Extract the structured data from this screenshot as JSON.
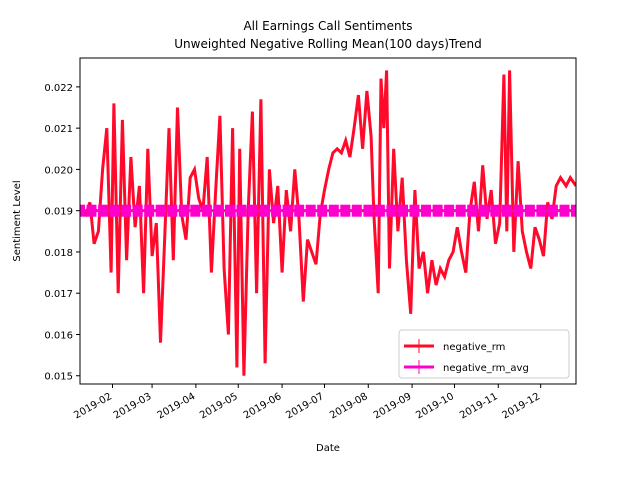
{
  "chart_data": {
    "type": "line",
    "title": "All Earnings Call Sentiments",
    "subtitle": "Unweighted Negative Rolling Mean(100 days)Trend",
    "xlabel": "Date",
    "ylabel": "Sentiment Level",
    "xlim": [
      "2019-01-09",
      "2019-12-26"
    ],
    "ylim": [
      0.0148,
      0.0227
    ],
    "x_ticks": [
      "2019-02",
      "2019-03",
      "2019-04",
      "2019-05",
      "2019-06",
      "2019-07",
      "2019-08",
      "2019-09",
      "2019-10",
      "2019-11",
      "2019-12"
    ],
    "y_ticks": [
      "0.015",
      "0.016",
      "0.017",
      "0.018",
      "0.019",
      "0.020",
      "0.021",
      "0.022"
    ],
    "grid": false,
    "legend_position": "lower right",
    "series": [
      {
        "name": "negative_rm",
        "color": "#ff0a2a",
        "style": "line",
        "points": [
          [
            "2019-01-09",
            0.019
          ],
          [
            "2019-01-13",
            0.0189
          ],
          [
            "2019-01-16",
            0.0192
          ],
          [
            "2019-01-19",
            0.0182
          ],
          [
            "2019-01-22",
            0.0185
          ],
          [
            "2019-01-25",
            0.02
          ],
          [
            "2019-01-28",
            0.021
          ],
          [
            "2019-01-31",
            0.0175
          ],
          [
            "2019-02-02",
            0.0216
          ],
          [
            "2019-02-05",
            0.017
          ],
          [
            "2019-02-08",
            0.0212
          ],
          [
            "2019-02-11",
            0.0178
          ],
          [
            "2019-02-14",
            0.0203
          ],
          [
            "2019-02-17",
            0.0186
          ],
          [
            "2019-02-20",
            0.0196
          ],
          [
            "2019-02-23",
            0.017
          ],
          [
            "2019-02-26",
            0.0205
          ],
          [
            "2019-03-01",
            0.0179
          ],
          [
            "2019-03-04",
            0.0187
          ],
          [
            "2019-03-07",
            0.0158
          ],
          [
            "2019-03-10",
            0.0184
          ],
          [
            "2019-03-13",
            0.021
          ],
          [
            "2019-03-16",
            0.0178
          ],
          [
            "2019-03-19",
            0.0215
          ],
          [
            "2019-03-22",
            0.0189
          ],
          [
            "2019-03-25",
            0.0183
          ],
          [
            "2019-03-28",
            0.0198
          ],
          [
            "2019-03-31",
            0.02
          ],
          [
            "2019-04-03",
            0.0193
          ],
          [
            "2019-04-06",
            0.019
          ],
          [
            "2019-04-09",
            0.0203
          ],
          [
            "2019-04-12",
            0.0175
          ],
          [
            "2019-04-15",
            0.0195
          ],
          [
            "2019-04-18",
            0.0213
          ],
          [
            "2019-04-21",
            0.0176
          ],
          [
            "2019-04-24",
            0.016
          ],
          [
            "2019-04-27",
            0.021
          ],
          [
            "2019-04-30",
            0.0152
          ],
          [
            "2019-05-02",
            0.0205
          ],
          [
            "2019-05-05",
            0.015
          ],
          [
            "2019-05-08",
            0.019
          ],
          [
            "2019-05-11",
            0.0214
          ],
          [
            "2019-05-14",
            0.017
          ],
          [
            "2019-05-17",
            0.0217
          ],
          [
            "2019-05-20",
            0.0153
          ],
          [
            "2019-05-23",
            0.02
          ],
          [
            "2019-05-26",
            0.0187
          ],
          [
            "2019-05-29",
            0.0196
          ],
          [
            "2019-06-01",
            0.0175
          ],
          [
            "2019-06-04",
            0.0195
          ],
          [
            "2019-06-07",
            0.0185
          ],
          [
            "2019-06-10",
            0.02
          ],
          [
            "2019-06-13",
            0.0188
          ],
          [
            "2019-06-16",
            0.0168
          ],
          [
            "2019-06-19",
            0.0183
          ],
          [
            "2019-06-22",
            0.018
          ],
          [
            "2019-06-25",
            0.0177
          ],
          [
            "2019-06-28",
            0.0189
          ],
          [
            "2019-07-01",
            0.0195
          ],
          [
            "2019-07-04",
            0.02
          ],
          [
            "2019-07-07",
            0.0204
          ],
          [
            "2019-07-10",
            0.0205
          ],
          [
            "2019-07-13",
            0.0204
          ],
          [
            "2019-07-16",
            0.0207
          ],
          [
            "2019-07-19",
            0.0203
          ],
          [
            "2019-07-22",
            0.021
          ],
          [
            "2019-07-25",
            0.0218
          ],
          [
            "2019-07-28",
            0.0205
          ],
          [
            "2019-07-31",
            0.0219
          ],
          [
            "2019-08-03",
            0.0208
          ],
          [
            "2019-08-05",
            0.0189
          ],
          [
            "2019-08-08",
            0.017
          ],
          [
            "2019-08-10",
            0.0222
          ],
          [
            "2019-08-12",
            0.021
          ],
          [
            "2019-08-14",
            0.0224
          ],
          [
            "2019-08-16",
            0.0176
          ],
          [
            "2019-08-19",
            0.0205
          ],
          [
            "2019-08-22",
            0.0185
          ],
          [
            "2019-08-25",
            0.0198
          ],
          [
            "2019-08-28",
            0.0178
          ],
          [
            "2019-08-31",
            0.0165
          ],
          [
            "2019-09-03",
            0.0195
          ],
          [
            "2019-09-06",
            0.0176
          ],
          [
            "2019-09-09",
            0.018
          ],
          [
            "2019-09-12",
            0.017
          ],
          [
            "2019-09-15",
            0.0178
          ],
          [
            "2019-09-18",
            0.0172
          ],
          [
            "2019-09-21",
            0.0176
          ],
          [
            "2019-09-24",
            0.0174
          ],
          [
            "2019-09-27",
            0.0178
          ],
          [
            "2019-09-30",
            0.018
          ],
          [
            "2019-10-03",
            0.0186
          ],
          [
            "2019-10-06",
            0.018
          ],
          [
            "2019-10-09",
            0.0175
          ],
          [
            "2019-10-12",
            0.019
          ],
          [
            "2019-10-15",
            0.0197
          ],
          [
            "2019-10-18",
            0.0185
          ],
          [
            "2019-10-21",
            0.0201
          ],
          [
            "2019-10-24",
            0.0188
          ],
          [
            "2019-10-27",
            0.0195
          ],
          [
            "2019-10-30",
            0.0182
          ],
          [
            "2019-11-02",
            0.0187
          ],
          [
            "2019-11-05",
            0.0223
          ],
          [
            "2019-11-07",
            0.0185
          ],
          [
            "2019-11-09",
            0.0224
          ],
          [
            "2019-11-12",
            0.018
          ],
          [
            "2019-11-15",
            0.0202
          ],
          [
            "2019-11-18",
            0.0185
          ],
          [
            "2019-11-21",
            0.018
          ],
          [
            "2019-11-24",
            0.0176
          ],
          [
            "2019-11-27",
            0.0186
          ],
          [
            "2019-11-30",
            0.0183
          ],
          [
            "2019-12-03",
            0.0179
          ],
          [
            "2019-12-06",
            0.0192
          ],
          [
            "2019-12-09",
            0.0188
          ],
          [
            "2019-12-12",
            0.0196
          ],
          [
            "2019-12-15",
            0.0198
          ],
          [
            "2019-12-19",
            0.0196
          ],
          [
            "2019-12-22",
            0.0198
          ],
          [
            "2019-12-26",
            0.0196
          ]
        ]
      },
      {
        "name": "negative_rm_avg",
        "color": "#ff00cc",
        "style": "line-with-markers",
        "marker": "square",
        "value": 0.019,
        "x": [
          "2019-01-09",
          "2019-12-26"
        ]
      }
    ]
  }
}
